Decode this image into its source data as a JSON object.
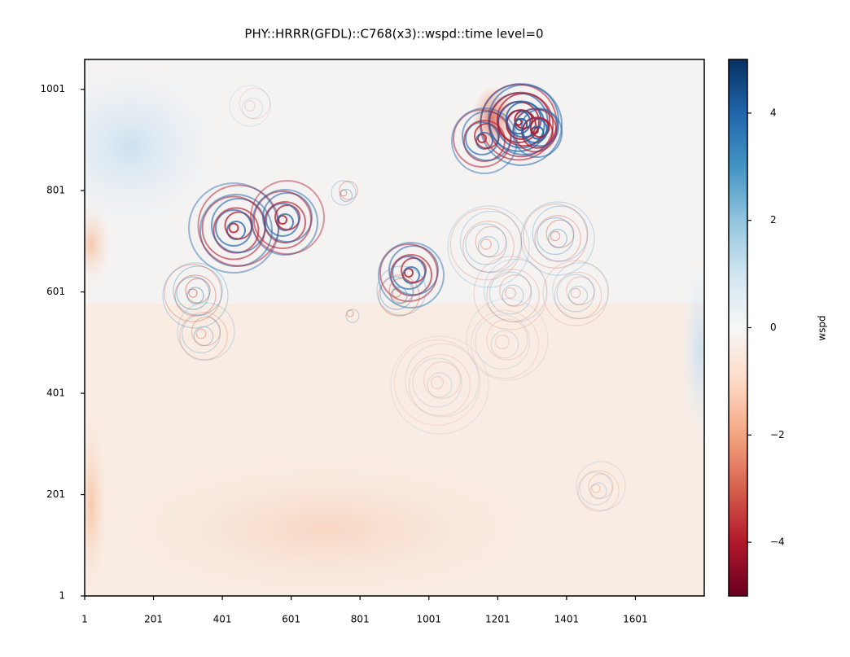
{
  "chart_data": {
    "type": "heatmap",
    "title": "PHY::HRRR(GFDL)::C768(x3)::wspd::time level=0",
    "xlim": [
      1,
      1801
    ],
    "xticks": [
      1,
      201,
      401,
      601,
      801,
      1001,
      1201,
      1401,
      1601
    ],
    "ylim": [
      1,
      1060
    ],
    "yticks": [
      1,
      201,
      401,
      601,
      801,
      1001
    ],
    "colorbar_label": "wspd",
    "colormap": "RdBu",
    "clim": [
      -5,
      5
    ],
    "colorbar_ticks": [
      {
        "value": -4,
        "label": "−4"
      },
      {
        "value": -2,
        "label": "−2"
      },
      0,
      2,
      4
    ]
  }
}
